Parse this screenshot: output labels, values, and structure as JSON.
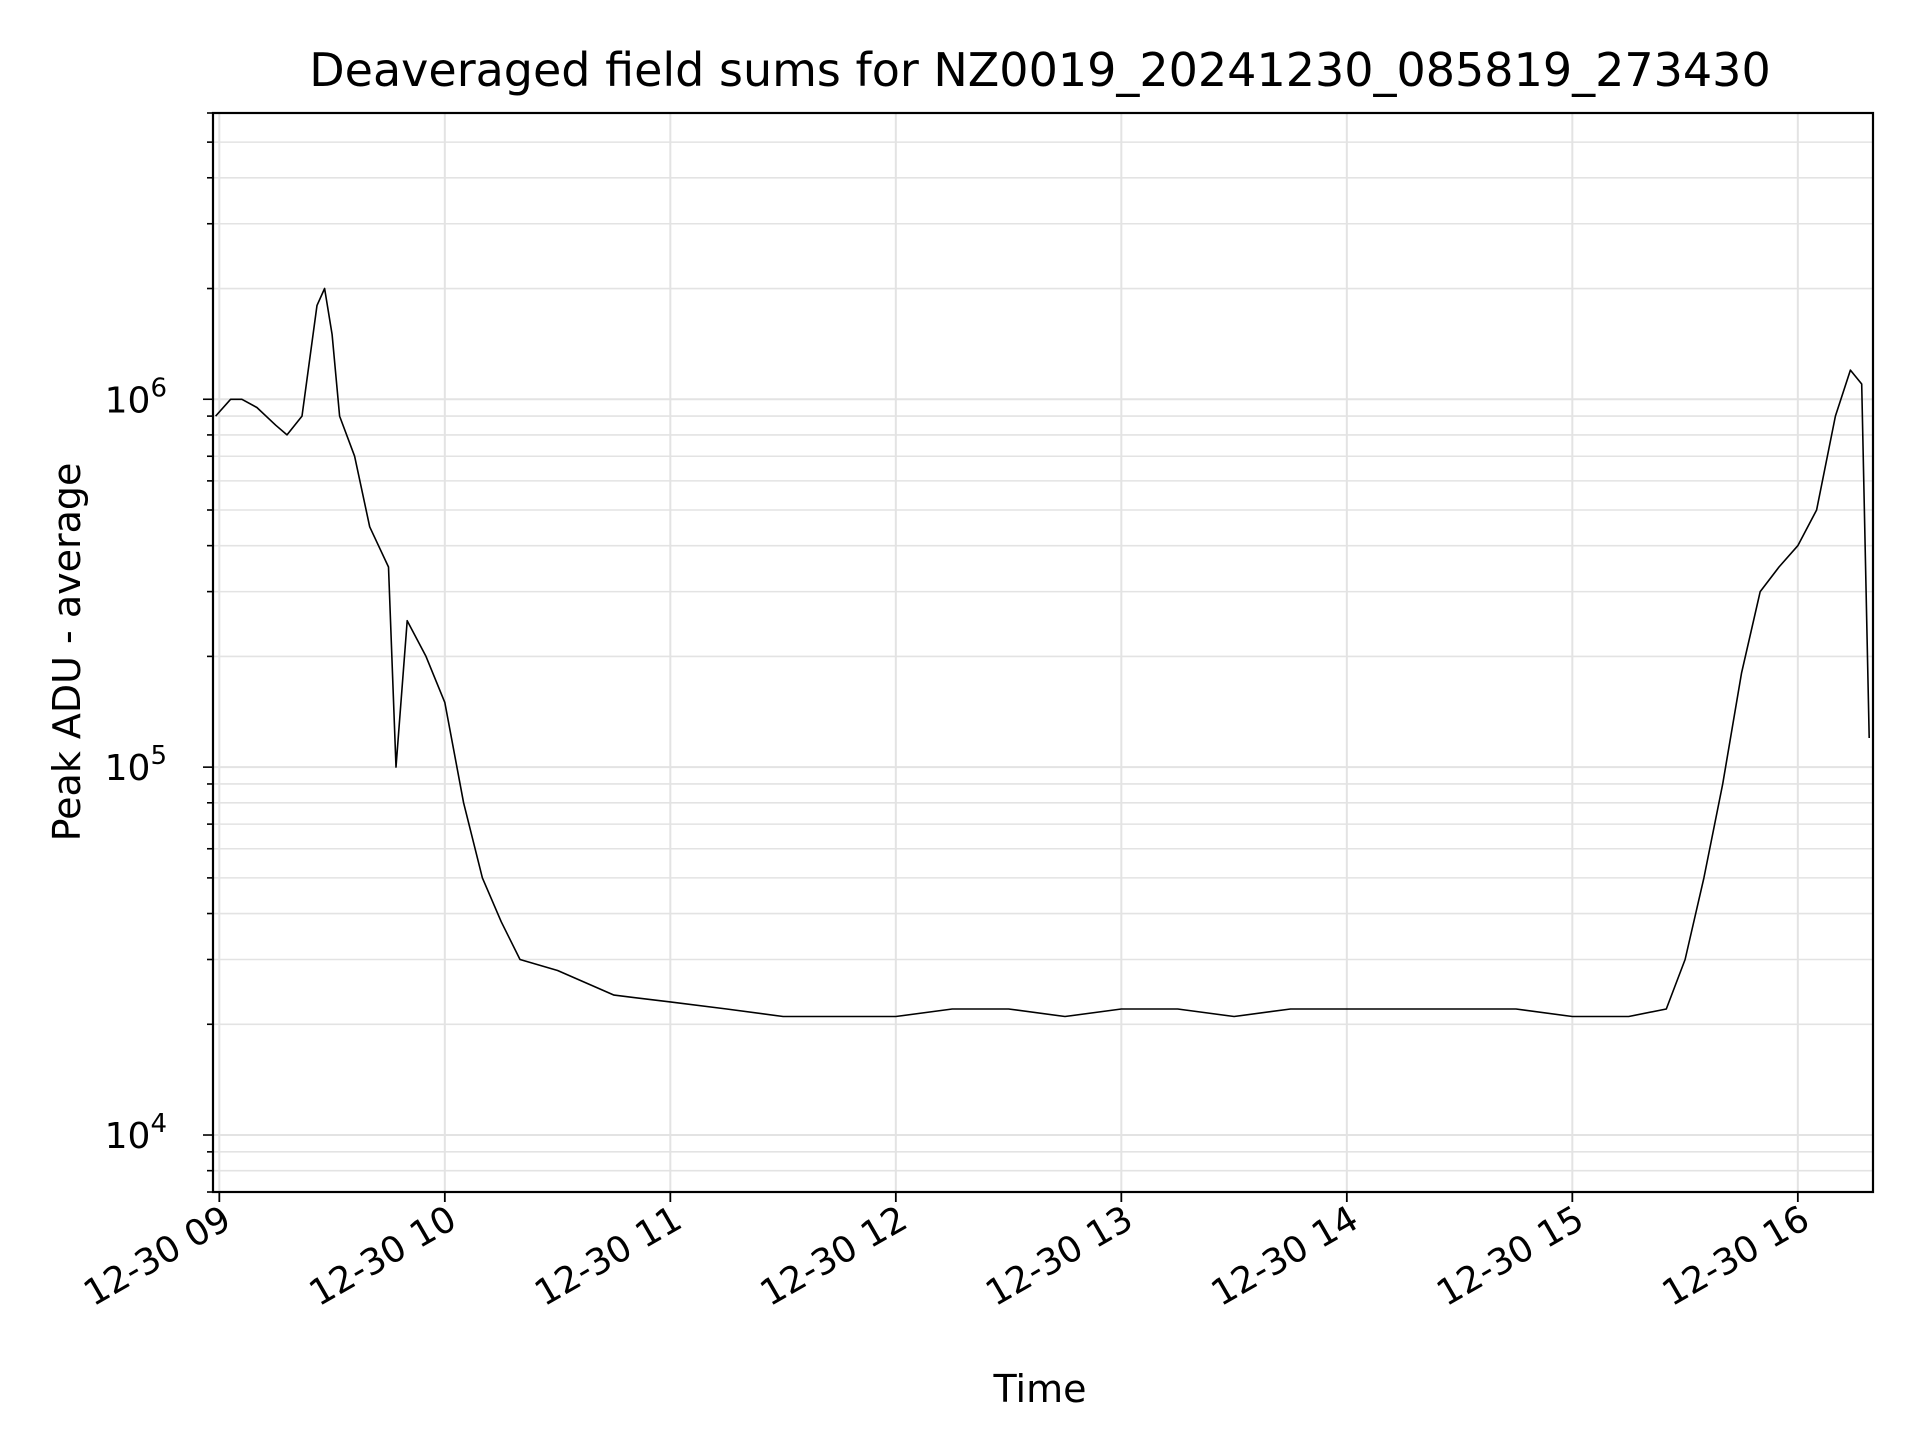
{
  "chart_data": {
    "type": "line",
    "title": "Deaveraged field sums for NZ0019_20241230_085819_273430",
    "xlabel": "Time",
    "ylabel": "Peak ADU - average",
    "y_scale": "log",
    "ylim": [
      7000,
      6000000
    ],
    "xlim": [
      "2024-12-30 08:58:19",
      "2024-12-30 16:20:00"
    ],
    "x_ticks": [
      {
        "value": "2024-12-30 09:00",
        "label": "12-30 09"
      },
      {
        "value": "2024-12-30 10:00",
        "label": "12-30 10"
      },
      {
        "value": "2024-12-30 11:00",
        "label": "12-30 11"
      },
      {
        "value": "2024-12-30 12:00",
        "label": "12-30 12"
      },
      {
        "value": "2024-12-30 13:00",
        "label": "12-30 13"
      },
      {
        "value": "2024-12-30 14:00",
        "label": "12-30 14"
      },
      {
        "value": "2024-12-30 15:00",
        "label": "12-30 15"
      },
      {
        "value": "2024-12-30 16:00",
        "label": "12-30 16"
      }
    ],
    "y_ticks": [
      {
        "value": 10000,
        "base": "10",
        "exp": "4"
      },
      {
        "value": 100000,
        "base": "10",
        "exp": "5"
      },
      {
        "value": 1000000,
        "base": "10",
        "exp": "6"
      }
    ],
    "grid": true,
    "line_color": "#000000",
    "series": [
      {
        "x": [
          "2024-12-30 08:59",
          "2024-12-30 09:03",
          "2024-12-30 09:06",
          "2024-12-30 09:10",
          "2024-12-30 09:15",
          "2024-12-30 09:18",
          "2024-12-30 09:22",
          "2024-12-30 09:26",
          "2024-12-30 09:28",
          "2024-12-30 09:30",
          "2024-12-30 09:32",
          "2024-12-30 09:36",
          "2024-12-30 09:40",
          "2024-12-30 09:45",
          "2024-12-30 09:47",
          "2024-12-30 09:50",
          "2024-12-30 09:55",
          "2024-12-30 10:00",
          "2024-12-30 10:05",
          "2024-12-30 10:10",
          "2024-12-30 10:15",
          "2024-12-30 10:20",
          "2024-12-30 10:30",
          "2024-12-30 10:45",
          "2024-12-30 11:00",
          "2024-12-30 11:15",
          "2024-12-30 11:30",
          "2024-12-30 11:45",
          "2024-12-30 12:00",
          "2024-12-30 12:15",
          "2024-12-30 12:30",
          "2024-12-30 12:45",
          "2024-12-30 13:00",
          "2024-12-30 13:15",
          "2024-12-30 13:30",
          "2024-12-30 13:45",
          "2024-12-30 14:00",
          "2024-12-30 14:15",
          "2024-12-30 14:30",
          "2024-12-30 14:45",
          "2024-12-30 15:00",
          "2024-12-30 15:15",
          "2024-12-30 15:25",
          "2024-12-30 15:30",
          "2024-12-30 15:35",
          "2024-12-30 15:40",
          "2024-12-30 15:45",
          "2024-12-30 15:50",
          "2024-12-30 15:55",
          "2024-12-30 16:00",
          "2024-12-30 16:05",
          "2024-12-30 16:10",
          "2024-12-30 16:14",
          "2024-12-30 16:17",
          "2024-12-30 16:19"
        ],
        "y": [
          900000,
          1000000,
          1000000,
          950000,
          850000,
          800000,
          900000,
          1800000,
          2000000,
          1500000,
          900000,
          700000,
          450000,
          350000,
          100000,
          250000,
          200000,
          150000,
          80000,
          50000,
          38000,
          30000,
          28000,
          24000,
          23000,
          22000,
          21000,
          21000,
          21000,
          22000,
          22000,
          21000,
          22000,
          22000,
          21000,
          22000,
          22000,
          22000,
          22000,
          22000,
          21000,
          21000,
          22000,
          30000,
          50000,
          90000,
          180000,
          300000,
          350000,
          400000,
          500000,
          900000,
          1200000,
          1100000,
          120000
        ]
      }
    ]
  }
}
